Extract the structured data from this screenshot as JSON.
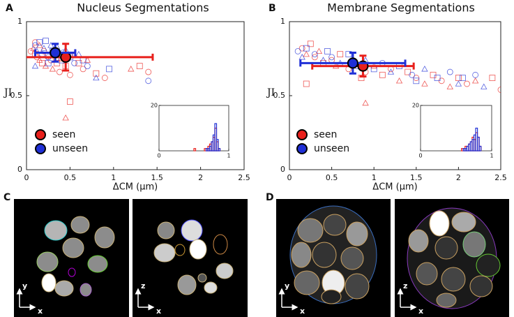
{
  "chart_data": [
    {
      "type": "scatter",
      "panel": "A",
      "title": "Nucleus Segmentations",
      "xlabel": "ΔCM (µm)",
      "ylabel": "JI",
      "xlim": [
        0,
        2.5
      ],
      "xticks": [
        0,
        0.5,
        1,
        1.5,
        2,
        2.5
      ],
      "ylim": [
        0,
        1
      ],
      "yticks": [
        0,
        0.5,
        1
      ],
      "grid": false,
      "legend": "lower left",
      "series": [
        {
          "name": "seen",
          "color": "#e8201c",
          "x": [
            0.05,
            0.08,
            0.1,
            0.12,
            0.15,
            0.18,
            0.2,
            0.22,
            0.25,
            0.28,
            0.3,
            0.35,
            0.38,
            0.4,
            0.45,
            0.5,
            0.55,
            0.6,
            0.65,
            0.7,
            0.8,
            0.9,
            1.2,
            1.3,
            1.4,
            0.45,
            0.5,
            0.1,
            0.15
          ],
          "values": [
            0.8,
            0.82,
            0.78,
            0.76,
            0.84,
            0.72,
            0.8,
            0.7,
            0.77,
            0.74,
            0.68,
            0.72,
            0.66,
            0.75,
            0.7,
            0.64,
            0.78,
            0.72,
            0.68,
            0.74,
            0.65,
            0.62,
            0.68,
            0.7,
            0.66,
            0.35,
            0.46,
            0.86,
            0.74
          ],
          "mean": {
            "x": 0.45,
            "y": 0.76,
            "xerr": 1.0,
            "yerr": 0.09
          }
        },
        {
          "name": "unseen",
          "color": "#1f2fd6",
          "x": [
            0.1,
            0.12,
            0.15,
            0.18,
            0.2,
            0.22,
            0.25,
            0.28,
            0.3,
            0.32,
            0.35,
            0.4,
            0.42,
            0.45,
            0.5,
            0.55,
            0.6,
            0.65,
            0.7,
            0.8,
            0.95,
            1.4,
            0.1,
            0.25
          ],
          "values": [
            0.84,
            0.8,
            0.86,
            0.78,
            0.82,
            0.87,
            0.76,
            0.84,
            0.8,
            0.78,
            0.83,
            0.74,
            0.79,
            0.81,
            0.76,
            0.72,
            0.78,
            0.74,
            0.7,
            0.62,
            0.68,
            0.6,
            0.7,
            0.72
          ],
          "mean": {
            "x": 0.33,
            "y": 0.79,
            "xerr": 0.23,
            "yerr": 0.06
          }
        }
      ],
      "inset": {
        "type": "histogram",
        "xlim": [
          0,
          1
        ],
        "xticks": [
          0,
          1
        ],
        "ylim": [
          0,
          20
        ],
        "yticks": [
          20
        ],
        "bins": [
          0.5,
          0.525,
          0.55,
          0.575,
          0.6,
          0.625,
          0.65,
          0.675,
          0.7,
          0.725,
          0.75,
          0.775,
          0.8,
          0.825,
          0.85,
          0.875
        ],
        "series": [
          {
            "color": "#e8201c",
            "counts": [
              1,
              0,
              0,
              0,
              0,
              0,
              1,
              1,
              2,
              3,
              4,
              6,
              10,
              4,
              1
            ]
          },
          {
            "color": "#1f2fd6",
            "counts": [
              0,
              0,
              0,
              0,
              0,
              0,
              0,
              1,
              1,
              2,
              4,
              7,
              12,
              5,
              1
            ]
          }
        ]
      }
    },
    {
      "type": "scatter",
      "panel": "B",
      "title": "Membrane Segmentations",
      "xlabel": "ΔCM (µm)",
      "ylabel": "JI",
      "xlim": [
        0,
        2.5
      ],
      "xticks": [
        0,
        0.5,
        1,
        1.5,
        2,
        2.5
      ],
      "ylim": [
        0,
        1
      ],
      "yticks": [
        0,
        0.5,
        1
      ],
      "grid": false,
      "legend": "lower left",
      "series": [
        {
          "name": "seen",
          "color": "#e8201c",
          "x": [
            0.15,
            0.2,
            0.25,
            0.3,
            0.35,
            0.4,
            0.5,
            0.55,
            0.6,
            0.7,
            0.8,
            0.85,
            0.9,
            1.0,
            1.1,
            1.2,
            1.3,
            1.4,
            1.5,
            1.6,
            1.7,
            1.8,
            1.9,
            2.0,
            2.1,
            2.2,
            2.4,
            2.5,
            0.9,
            0.2
          ],
          "values": [
            0.82,
            0.78,
            0.85,
            0.76,
            0.8,
            0.72,
            0.74,
            0.7,
            0.78,
            0.68,
            0.72,
            0.62,
            0.66,
            0.7,
            0.64,
            0.68,
            0.6,
            0.66,
            0.62,
            0.58,
            0.64,
            0.6,
            0.56,
            0.62,
            0.58,
            0.6,
            0.62,
            0.54,
            0.45,
            0.58
          ],
          "mean": {
            "x": 0.87,
            "y": 0.7,
            "xerr": 0.6,
            "yerr": 0.07
          }
        },
        {
          "name": "unseen",
          "color": "#1f2fd6",
          "x": [
            0.1,
            0.15,
            0.2,
            0.3,
            0.4,
            0.45,
            0.5,
            0.6,
            0.7,
            0.8,
            0.9,
            1.0,
            1.1,
            1.2,
            1.3,
            1.45,
            1.6,
            1.75,
            1.9,
            2.0,
            2.05,
            2.2,
            2.3,
            1.5
          ],
          "values": [
            0.8,
            0.76,
            0.82,
            0.78,
            0.74,
            0.8,
            0.76,
            0.72,
            0.78,
            0.7,
            0.74,
            0.68,
            0.72,
            0.66,
            0.7,
            0.64,
            0.68,
            0.62,
            0.66,
            0.58,
            0.62,
            0.64,
            0.56,
            0.6
          ],
          "mean": {
            "x": 0.75,
            "y": 0.72,
            "xerr": 0.62,
            "yerr": 0.07
          }
        }
      ],
      "inset": {
        "type": "histogram",
        "xlim": [
          0,
          1
        ],
        "xticks": [
          0,
          1
        ],
        "ylim": [
          0,
          20
        ],
        "yticks": [
          20
        ],
        "bins": [
          0.5,
          0.525,
          0.55,
          0.575,
          0.6,
          0.625,
          0.65,
          0.675,
          0.7,
          0.725,
          0.75,
          0.775,
          0.8,
          0.825,
          0.85,
          0.875
        ],
        "series": [
          {
            "color": "#e8201c",
            "counts": [
              0,
              0,
              0,
              1,
              1,
              2,
              2,
              3,
              4,
              6,
              5,
              8,
              6,
              2,
              0
            ]
          },
          {
            "color": "#1f2fd6",
            "counts": [
              0,
              0,
              0,
              0,
              1,
              1,
              2,
              3,
              4,
              5,
              7,
              10,
              6,
              2,
              0
            ]
          }
        ]
      }
    }
  ],
  "image_panels": [
    {
      "label": "C",
      "views": [
        {
          "axes": [
            "x",
            "y"
          ]
        },
        {
          "axes": [
            "x",
            "z"
          ]
        }
      ]
    },
    {
      "label": "D",
      "views": [
        {
          "axes": [
            "x",
            "y"
          ]
        },
        {
          "axes": [
            "x",
            "z"
          ]
        }
      ]
    }
  ]
}
